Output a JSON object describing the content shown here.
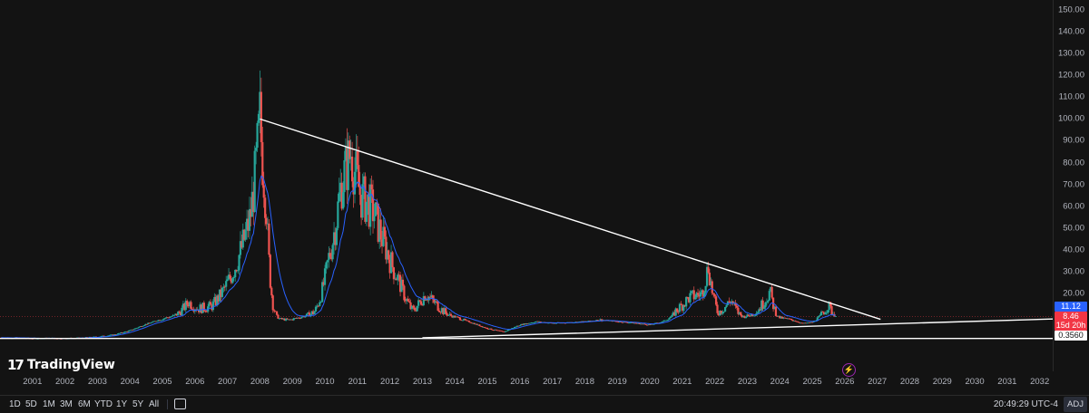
{
  "chart_data": {
    "type": "candlestick",
    "scale": "log",
    "x_range": [
      2000.5,
      2032.9
    ],
    "y_range": [
      0.3,
      150
    ],
    "y_ticks": [
      "150.00",
      "140.00",
      "130.00",
      "120.00",
      "110.00",
      "100.00",
      "90.00",
      "80.00",
      "70.00",
      "60.00",
      "50.00",
      "40.00",
      "30.00",
      "20.00",
      "10.00"
    ],
    "x_ticks": [
      "2001",
      "2002",
      "2003",
      "2004",
      "2005",
      "2006",
      "2007",
      "2008",
      "2009",
      "2010",
      "2011",
      "2012",
      "2013",
      "2014",
      "2015",
      "2016",
      "2017",
      "2018",
      "2019",
      "2020",
      "2021",
      "2022",
      "2023",
      "2024",
      "2025",
      "2026",
      "2027",
      "2028",
      "2029",
      "2030",
      "2031",
      "2032"
    ],
    "price_path": [
      [
        2000.5,
        0.4
      ],
      [
        2001.0,
        0.39
      ],
      [
        2001.5,
        0.36
      ],
      [
        2002.0,
        0.37
      ],
      [
        2002.5,
        0.36
      ],
      [
        2003.0,
        0.38
      ],
      [
        2003.5,
        0.45
      ],
      [
        2004.0,
        0.6
      ],
      [
        2004.5,
        1.1
      ],
      [
        2005.0,
        2.8
      ],
      [
        2005.5,
        6.0
      ],
      [
        2006.0,
        11.0
      ],
      [
        2006.3,
        16.0
      ],
      [
        2006.6,
        13.0
      ],
      [
        2007.0,
        14.0
      ],
      [
        2007.4,
        22.0
      ],
      [
        2007.8,
        35.0
      ],
      [
        2008.2,
        55.0
      ],
      [
        2008.5,
        100.0
      ],
      [
        2008.7,
        60.0
      ],
      [
        2008.9,
        15.0
      ],
      [
        2009.1,
        6.0
      ],
      [
        2009.4,
        5.0
      ],
      [
        2009.8,
        8.0
      ],
      [
        2010.2,
        12.0
      ],
      [
        2010.6,
        35.0
      ],
      [
        2011.0,
        70.0
      ],
      [
        2011.3,
        85.0
      ],
      [
        2011.6,
        65.0
      ],
      [
        2012.0,
        58.0
      ],
      [
        2012.4,
        40.0
      ],
      [
        2012.8,
        25.0
      ],
      [
        2013.2,
        12.0
      ],
      [
        2013.6,
        20.0
      ],
      [
        2014.0,
        14.0
      ],
      [
        2014.5,
        8.0
      ],
      [
        2015.0,
        3.5
      ],
      [
        2015.5,
        1.5
      ],
      [
        2016.0,
        0.9
      ],
      [
        2016.5,
        2.5
      ],
      [
        2017.0,
        4.0
      ],
      [
        2017.5,
        3.2
      ],
      [
        2018.0,
        3.5
      ],
      [
        2018.5,
        4.0
      ],
      [
        2019.0,
        5.2
      ],
      [
        2019.5,
        4.0
      ],
      [
        2020.0,
        3.3
      ],
      [
        2020.5,
        2.5
      ],
      [
        2020.9,
        4.0
      ],
      [
        2021.3,
        12.0
      ],
      [
        2021.7,
        18.0
      ],
      [
        2022.1,
        20.0
      ],
      [
        2022.3,
        33.0
      ],
      [
        2022.6,
        11.0
      ],
      [
        2023.0,
        17.0
      ],
      [
        2023.4,
        8.0
      ],
      [
        2023.8,
        12.0
      ],
      [
        2024.2,
        21.0
      ],
      [
        2024.5,
        7.0
      ],
      [
        2024.9,
        5.0
      ],
      [
        2025.2,
        3.0
      ],
      [
        2025.5,
        3.6
      ],
      [
        2025.8,
        11.0
      ],
      [
        2026.0,
        14.5
      ],
      [
        2026.25,
        8.46
      ]
    ],
    "trendlines": [
      {
        "name": "upper",
        "points": [
          [
            2008.5,
            100.0
          ],
          [
            2027.6,
            5.5
          ]
        ]
      },
      {
        "name": "lower",
        "points": [
          [
            2013.5,
            0.39
          ],
          [
            2032.9,
            5.8
          ]
        ]
      },
      {
        "name": "horizontal",
        "points": [
          [
            2000.5,
            0.356
          ],
          [
            2032.9,
            0.356
          ]
        ]
      }
    ],
    "price_labels": [
      {
        "value": "11.12",
        "color": "#2962ff"
      },
      {
        "value": "8.46",
        "color": "#f23645"
      },
      {
        "value": "15d 20h",
        "color": "#f23645"
      },
      {
        "value": "0.3560",
        "color": "#ffffff"
      }
    ]
  },
  "branding": {
    "name": "TradingView"
  },
  "toolbar": {
    "timeframes": [
      "1D",
      "5D",
      "1M",
      "3M",
      "6M",
      "YTD",
      "1Y",
      "5Y",
      "All"
    ],
    "clock": "20:49:29 UTC-4",
    "adj": "ADJ"
  },
  "colors": {
    "up": "#26a69a",
    "down": "#ef5350",
    "ma": "#2962ff",
    "bg": "#131313",
    "trend": "#ffffff"
  }
}
